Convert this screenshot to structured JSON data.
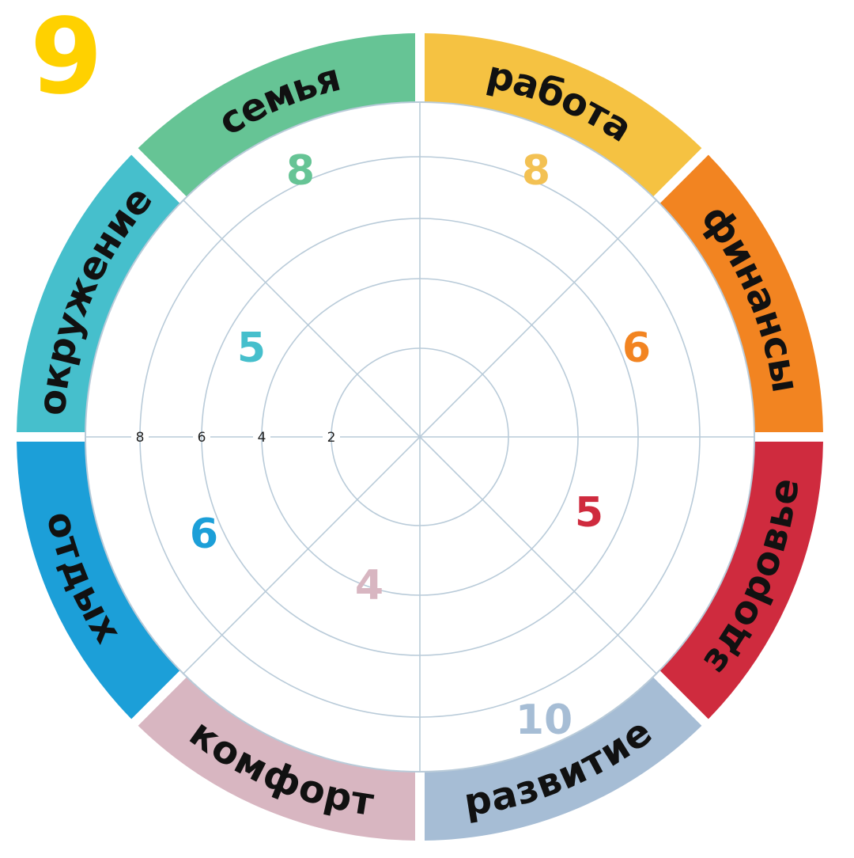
{
  "header": {
    "number": "9"
  },
  "colors": {
    "grid": "#b9cbd9",
    "label_text": "#111111",
    "tick_text": "#222222"
  },
  "scale": {
    "ticks": [
      "8",
      "6",
      "4",
      "2"
    ]
  },
  "chart_data": {
    "type": "radial",
    "segments": [
      {
        "name": "работа",
        "score": 8,
        "score_label": "8",
        "color": "#f5c242",
        "score_color": "#f3c153"
      },
      {
        "name": "финансы",
        "score": 6,
        "score_label": "6",
        "color": "#f28421",
        "score_color": "#f28421"
      },
      {
        "name": "здоровье",
        "score": 5,
        "score_label": "5",
        "color": "#cf2b3e",
        "score_color": "#cf2b3e"
      },
      {
        "name": "развитие",
        "score": 10,
        "score_label": "10",
        "color": "#a6bdd5",
        "score_color": "#a6bdd5"
      },
      {
        "name": "комфорт",
        "score": 4,
        "score_label": "4",
        "color": "#d8b6c1",
        "score_color": "#d8b6c1"
      },
      {
        "name": "отдых",
        "score": 6,
        "score_label": "6",
        "color": "#1c9fd8",
        "score_color": "#1c9fd8"
      },
      {
        "name": "окружение",
        "score": 5,
        "score_label": "5",
        "color": "#46bfcc",
        "score_color": "#46bfcc"
      },
      {
        "name": "семья",
        "score": 8,
        "score_label": "8",
        "color": "#66c495",
        "score_color": "#66c495"
      }
    ]
  }
}
